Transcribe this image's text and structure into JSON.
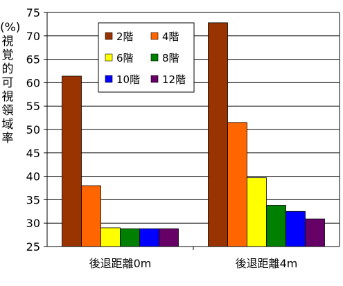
{
  "chart_data": {
    "type": "bar",
    "ylabel": "(%)視覚的可視領域率",
    "categories": [
      "後退距離0m",
      "後退距離4m"
    ],
    "ylim": [
      25,
      75
    ],
    "yticks": [
      25,
      30,
      35,
      40,
      45,
      50,
      55,
      60,
      65,
      70,
      75
    ],
    "grid": true,
    "legend_position": "top-center",
    "series": [
      {
        "name": "2階",
        "color": "#993300",
        "values": [
          61.4,
          72.8
        ]
      },
      {
        "name": "4階",
        "color": "#FF6600",
        "values": [
          38.0,
          51.5
        ]
      },
      {
        "name": "6階",
        "color": "#FFFF00",
        "values": [
          29.0,
          39.7
        ]
      },
      {
        "name": "8階",
        "color": "#008000",
        "values": [
          28.8,
          33.8
        ]
      },
      {
        "name": "10階",
        "color": "#0000FF",
        "values": [
          28.8,
          32.5
        ]
      },
      {
        "name": "12階",
        "color": "#660066",
        "values": [
          28.8,
          30.9
        ]
      }
    ]
  }
}
